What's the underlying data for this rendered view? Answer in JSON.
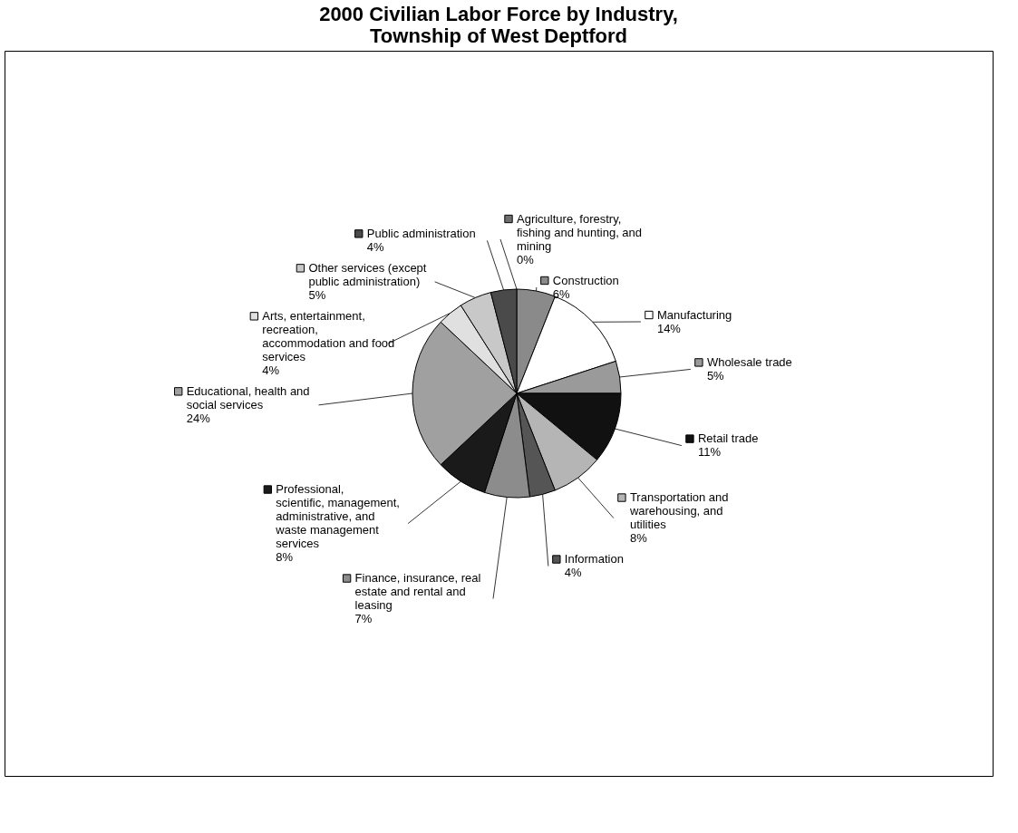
{
  "chart_data": {
    "type": "pie",
    "title": [
      "2000 Civilian Labor Force by Industry,",
      "Township of West Deptford"
    ],
    "categories": [
      "Agriculture, forestry, fishing and hunting, and mining",
      "Construction",
      "Manufacturing",
      "Wholesale trade",
      "Retail trade",
      "Transportation and warehousing, and utilities",
      "Information",
      "Finance, insurance, real estate and rental and leasing",
      "Professional, scientific, management, administrative, and waste management services",
      "Educational, health and social services",
      "Arts, entertainment, recreation, accommodation and food services",
      "Other services (except public administration)",
      "Public administration"
    ],
    "values": [
      0,
      6,
      14,
      5,
      11,
      8,
      4,
      7,
      8,
      24,
      4,
      5,
      4
    ],
    "value_labels": [
      "0%",
      "6%",
      "14%",
      "5%",
      "11%",
      "8%",
      "4%",
      "7%",
      "8%",
      "24%",
      "4%",
      "5%",
      "4%"
    ],
    "colors": [
      "#6e6e6e",
      "#8a8a8a",
      "#ffffff",
      "#9a9a9a",
      "#111111",
      "#b5b5b5",
      "#555555",
      "#8c8c8c",
      "#1a1a1a",
      "#a0a0a0",
      "#e0e0e0",
      "#c8c8c8",
      "#4a4a4a"
    ],
    "legend": "bottom left"
  }
}
